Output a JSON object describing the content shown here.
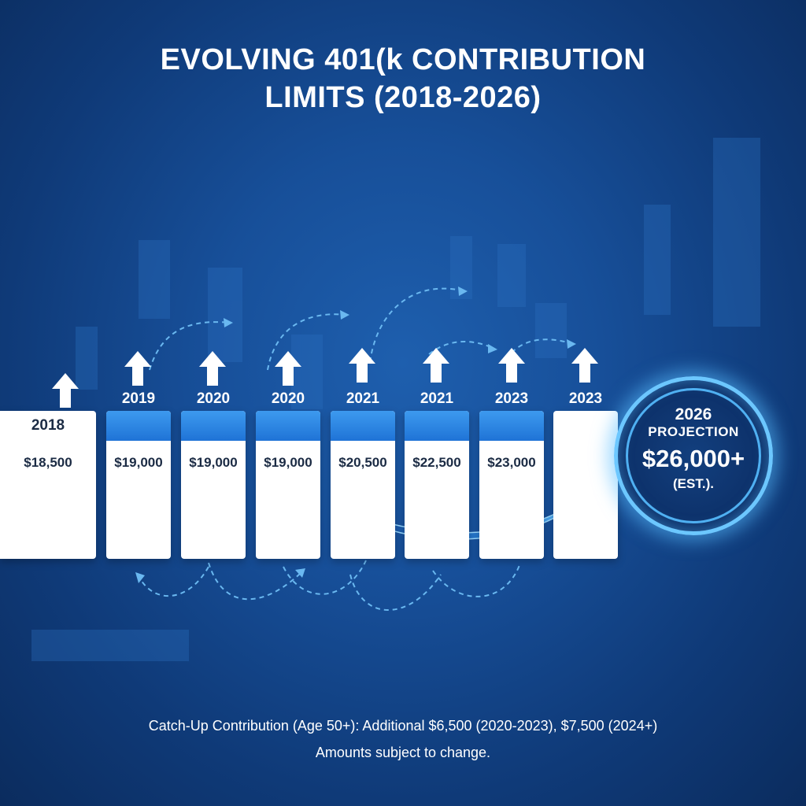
{
  "title": {
    "line1": "EVOLVING 401(k CONTRIBUTION",
    "line2": "LIMITS (2018-2026)"
  },
  "colors": {
    "background": "#174f99",
    "card_band": "#2a83e0",
    "card_text": "#1b2b44",
    "glow": "#6cc7ff"
  },
  "timeline": [
    {
      "year": "2018",
      "value": "$18,500"
    },
    {
      "year": "2019",
      "value": "$19,000"
    },
    {
      "year": "2020",
      "value": "$19,000"
    },
    {
      "year": "2020",
      "value": "$19,000"
    },
    {
      "year": "2021",
      "value": "$20,500"
    },
    {
      "year": "2021",
      "value": "$22,500"
    },
    {
      "year": "2023",
      "value": "$23,000"
    },
    {
      "year": "2023",
      "value": ""
    }
  ],
  "projection": {
    "year": "2026",
    "label": "PROJECTION",
    "value": "$26,000+",
    "note": "(EST.)."
  },
  "footer": {
    "catch_up": "Catch-Up Contribution (Age 50+): Additional $6,500 (2020-2023), $7,500 (2024+)",
    "disclaimer": "Amounts subject to change."
  },
  "icons": {
    "year_marker": "up-arrow-icon",
    "trend": "curved-arrow-icon"
  }
}
